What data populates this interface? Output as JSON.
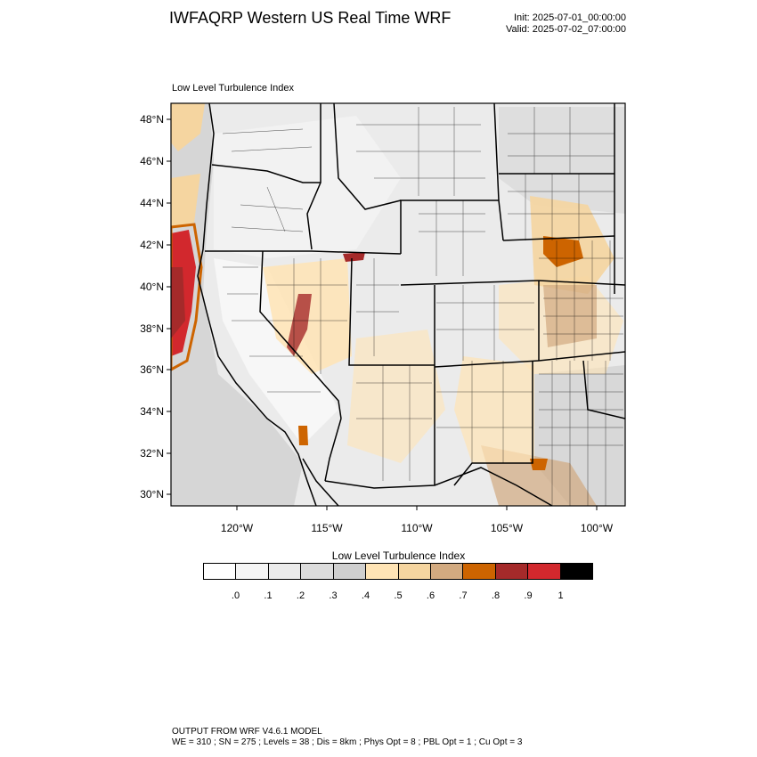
{
  "header": {
    "title": "IWFAQRP Western US Real Time WRF",
    "init": "Init: 2025-07-01_00:00:00",
    "valid": "Valid: 2025-07-02_07:00:00"
  },
  "map": {
    "subtitle": "Low Level Turbulence Index",
    "lat_labels": [
      "48°N",
      "46°N",
      "44°N",
      "42°N",
      "40°N",
      "38°N",
      "36°N",
      "34°N",
      "32°N",
      "30°N"
    ],
    "lon_labels": [
      "120°W",
      "115°W",
      "110°W",
      "105°W",
      "100°W"
    ]
  },
  "colorbar": {
    "title": "Low Level Turbulence Index",
    "colors": [
      "#ffffff",
      "#f5f5f5",
      "#ebebeb",
      "#dcdcdc",
      "#cfcfcf",
      "#ffe4b5",
      "#f5d5a0",
      "#d2aa80",
      "#cd6400",
      "#a52a2a",
      "#d2282d",
      "#000000"
    ],
    "ticks": [
      ".0",
      ".1",
      ".2",
      ".3",
      ".4",
      ".5",
      ".6",
      ".7",
      ".8",
      ".9",
      "1"
    ]
  },
  "footer": {
    "line1": "OUTPUT FROM WRF V4.6.1 MODEL",
    "line2": "WE = 310 ; SN = 275 ; Levels = 38 ; Dis = 8km ; Phys Opt = 8 ; PBL Opt = 1 ; Cu Opt = 3"
  }
}
